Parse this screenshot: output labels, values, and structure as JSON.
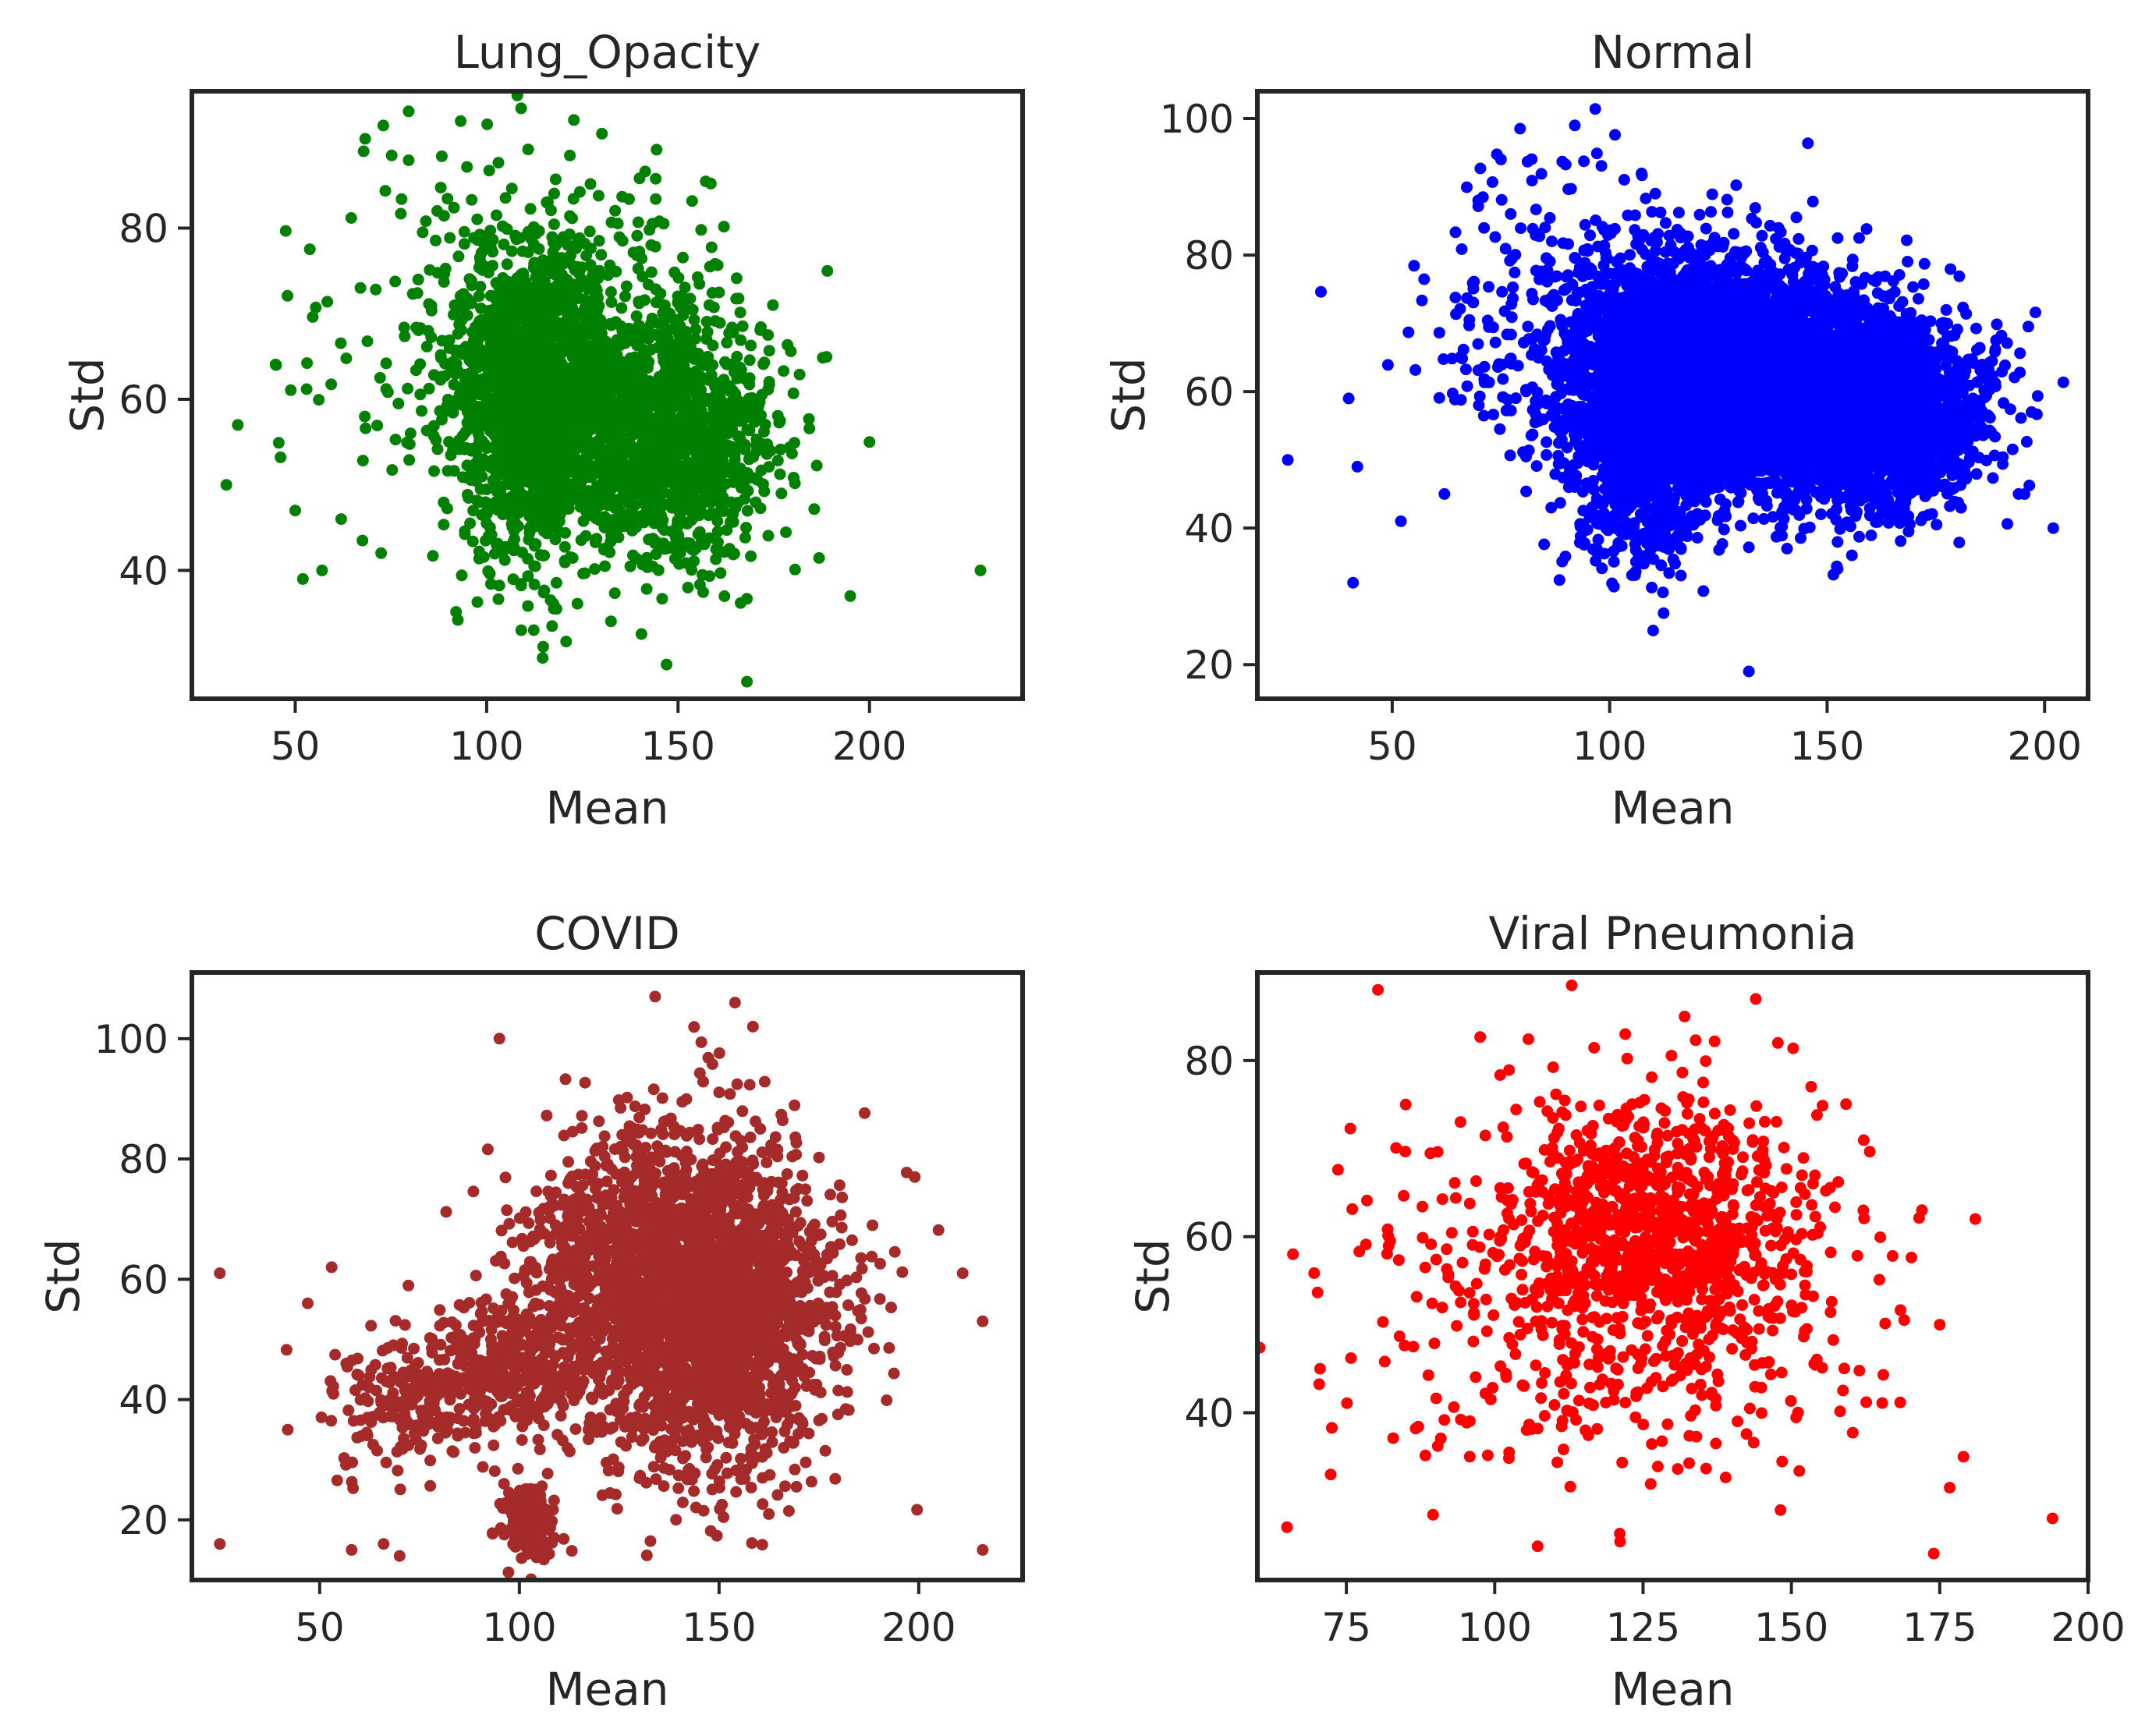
{
  "figure": {
    "description_free": true
  },
  "chart_data": [
    {
      "type": "scatter",
      "title": "Lung_Opacity",
      "xlabel": "Mean",
      "ylabel": "Std",
      "color": "#008000",
      "xlim": [
        23,
        240
      ],
      "ylim": [
        25,
        96
      ],
      "xticks": [
        50,
        100,
        150,
        200
      ],
      "yticks": [
        40,
        60,
        80
      ],
      "n_points": 3200,
      "clusters": [
        {
          "cx": 112,
          "cy": 60,
          "sx": 10,
          "sy": 9,
          "weight": 0.45
        },
        {
          "cx": 148,
          "cy": 55,
          "sx": 13,
          "sy": 7,
          "weight": 0.35
        },
        {
          "cx": 125,
          "cy": 65,
          "sx": 18,
          "sy": 9,
          "weight": 0.15
        },
        {
          "cx": 90,
          "cy": 68,
          "sx": 22,
          "sy": 12,
          "weight": 0.05
        }
      ],
      "outliers": [
        {
          "x": 32,
          "y": 50
        },
        {
          "x": 35,
          "y": 57
        },
        {
          "x": 45,
          "y": 64
        },
        {
          "x": 50,
          "y": 47
        },
        {
          "x": 52,
          "y": 39
        },
        {
          "x": 57,
          "y": 40
        },
        {
          "x": 62,
          "y": 46
        },
        {
          "x": 73,
          "y": 92
        },
        {
          "x": 109,
          "y": 94
        },
        {
          "x": 147,
          "y": 29
        },
        {
          "x": 168,
          "y": 27
        },
        {
          "x": 189,
          "y": 75
        },
        {
          "x": 195,
          "y": 37
        },
        {
          "x": 200,
          "y": 55
        },
        {
          "x": 229,
          "y": 40
        }
      ]
    },
    {
      "type": "scatter",
      "title": "Normal",
      "xlabel": "Mean",
      "ylabel": "Std",
      "color": "#0000ff",
      "xlim": [
        19,
        210
      ],
      "ylim": [
        15,
        104
      ],
      "xticks": [
        50,
        100,
        150,
        200
      ],
      "yticks": [
        20,
        40,
        60,
        80,
        100
      ],
      "n_points": 7500,
      "clusters": [
        {
          "cx": 125,
          "cy": 63,
          "sx": 16,
          "sy": 8,
          "weight": 0.55
        },
        {
          "cx": 160,
          "cy": 57,
          "sx": 13,
          "sy": 7,
          "weight": 0.3
        },
        {
          "cx": 108,
          "cy": 50,
          "sx": 8,
          "sy": 8,
          "weight": 0.1
        },
        {
          "cx": 95,
          "cy": 70,
          "sx": 18,
          "sy": 10,
          "weight": 0.05
        }
      ],
      "outliers": [
        {
          "x": 26,
          "y": 50
        },
        {
          "x": 40,
          "y": 59
        },
        {
          "x": 41,
          "y": 32
        },
        {
          "x": 42,
          "y": 49
        },
        {
          "x": 52,
          "y": 41
        },
        {
          "x": 75,
          "y": 94
        },
        {
          "x": 92,
          "y": 99
        },
        {
          "x": 110,
          "y": 25
        },
        {
          "x": 132,
          "y": 19
        },
        {
          "x": 197,
          "y": 57
        },
        {
          "x": 202,
          "y": 40
        },
        {
          "x": 62,
          "y": 45
        }
      ]
    },
    {
      "type": "scatter",
      "title": "COVID",
      "xlabel": "Mean",
      "ylabel": "Std",
      "color": "#a52a2a",
      "xlim": [
        18,
        226
      ],
      "ylim": [
        10,
        111
      ],
      "xticks": [
        50,
        100,
        150,
        200
      ],
      "yticks": [
        20,
        40,
        60,
        80,
        100
      ],
      "n_points": 3400,
      "clusters": [
        {
          "cx": 148,
          "cy": 55,
          "sx": 16,
          "sy": 14,
          "weight": 0.6
        },
        {
          "cx": 125,
          "cy": 62,
          "sx": 14,
          "sy": 12,
          "weight": 0.2
        },
        {
          "cx": 95,
          "cy": 45,
          "sx": 10,
          "sy": 6,
          "weight": 0.1
        },
        {
          "cx": 70,
          "cy": 40,
          "sx": 10,
          "sy": 6,
          "weight": 0.05
        },
        {
          "cx": 102,
          "cy": 20,
          "sx": 3,
          "sy": 3,
          "weight": 0.05
        }
      ],
      "outliers": [
        {
          "x": 25,
          "y": 61
        },
        {
          "x": 25,
          "y": 16
        },
        {
          "x": 42,
          "y": 35
        },
        {
          "x": 47,
          "y": 56
        },
        {
          "x": 53,
          "y": 62
        },
        {
          "x": 95,
          "y": 100
        },
        {
          "x": 134,
          "y": 107
        },
        {
          "x": 154,
          "y": 106
        },
        {
          "x": 199,
          "y": 77
        },
        {
          "x": 216,
          "y": 15
        },
        {
          "x": 216,
          "y": 53
        },
        {
          "x": 211,
          "y": 61
        },
        {
          "x": 58,
          "y": 15
        },
        {
          "x": 66,
          "y": 16
        },
        {
          "x": 70,
          "y": 14
        }
      ]
    },
    {
      "type": "scatter",
      "title": "Viral Pneumonia",
      "xlabel": "Mean",
      "ylabel": "Std",
      "color": "#ff0000",
      "xlim": [
        60,
        200
      ],
      "ylim": [
        21,
        90
      ],
      "xticks": [
        75,
        100,
        125,
        150,
        175,
        200
      ],
      "yticks": [
        40,
        60,
        80
      ],
      "n_points": 1300,
      "clusters": [
        {
          "cx": 127,
          "cy": 62,
          "sx": 11,
          "sy": 7,
          "weight": 0.5
        },
        {
          "cx": 122,
          "cy": 55,
          "sx": 20,
          "sy": 11,
          "weight": 0.5
        }
      ],
      "outliers": [
        {
          "x": 65,
          "y": 27
        },
        {
          "x": 66,
          "y": 58
        },
        {
          "x": 85,
          "y": 75
        },
        {
          "x": 122,
          "y": 83
        },
        {
          "x": 132,
          "y": 85
        },
        {
          "x": 144,
          "y": 87
        },
        {
          "x": 174,
          "y": 24
        },
        {
          "x": 179,
          "y": 35
        },
        {
          "x": 181,
          "y": 62
        },
        {
          "x": 194,
          "y": 28
        },
        {
          "x": 175,
          "y": 50
        },
        {
          "x": 172,
          "y": 63
        }
      ]
    }
  ]
}
